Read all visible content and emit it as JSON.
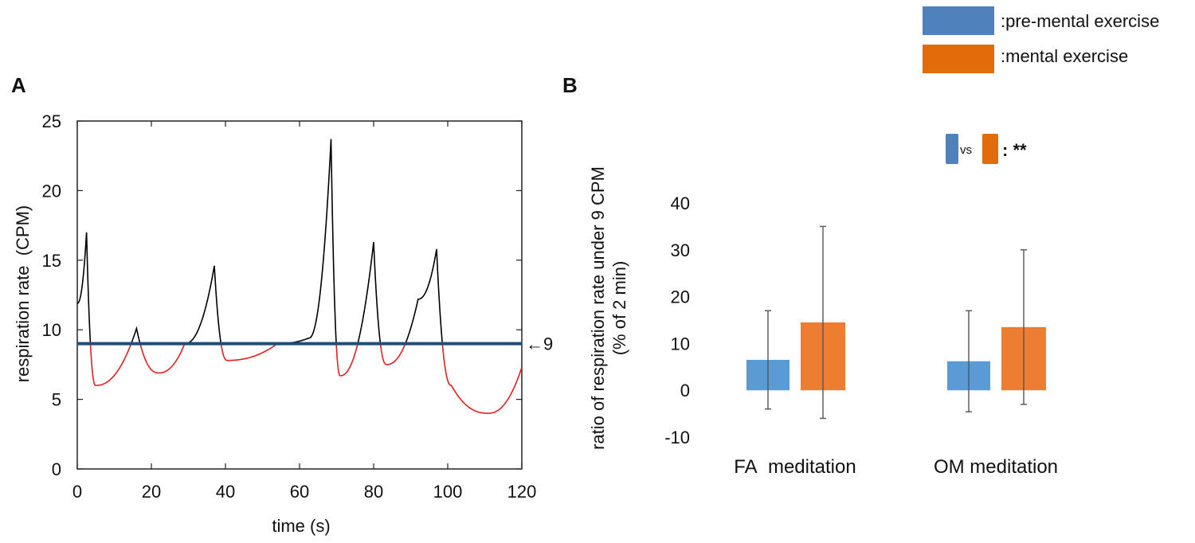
{
  "colors": {
    "pre": "#4f81bd",
    "mental": "#e36c0a",
    "bar_pre": "#5b9bd5",
    "bar_mental": "#ed7d31",
    "threshold_line": "#1f4e79",
    "above": "#000000",
    "below": "#e02020",
    "error_bar": "#555555"
  },
  "legend": {
    "pre_label": ":pre-mental exercise",
    "mental_label": ":mental exercise"
  },
  "chart_data": [
    {
      "type": "line",
      "panel": "A",
      "xlabel": "time (s)",
      "ylabel": "respiration rate  (CPM)",
      "xlim": [
        0,
        120
      ],
      "ylim": [
        0,
        25
      ],
      "xticks": [
        0,
        20,
        40,
        60,
        80,
        100,
        120
      ],
      "yticks": [
        0,
        5,
        10,
        15,
        20,
        25
      ],
      "threshold": {
        "value": 9,
        "label": "←9"
      },
      "series": [
        {
          "name": "respiration rate",
          "x": [
            0,
            2.5,
            5,
            16,
            22,
            29,
            37,
            40.5,
            54,
            62.5,
            68.5,
            71,
            80,
            83.5,
            92,
            97,
            101,
            111,
            120
          ],
          "y": [
            11.9,
            17,
            6,
            10.1,
            6.9,
            9,
            14.6,
            7.8,
            9,
            9.4,
            23.7,
            6.7,
            16.3,
            7.5,
            12.2,
            15.8,
            6,
            4,
            7.3
          ]
        }
      ]
    },
    {
      "type": "bar",
      "panel": "B",
      "categories": [
        "FA  meditation",
        "OM meditation"
      ],
      "ylabel_line1": "ratio of respiration rate under 9 CPM",
      "ylabel_line2": "(% of 2 min)",
      "ylim": [
        -10,
        40
      ],
      "yticks": [
        -10,
        0,
        10,
        20,
        30,
        40
      ],
      "series": [
        {
          "name": "pre-mental exercise",
          "values": [
            6.5,
            6.2
          ],
          "errors": [
            10.5,
            10.8
          ]
        },
        {
          "name": "mental exercise",
          "values": [
            14.5,
            13.5
          ],
          "errors": [
            20.5,
            16.5
          ]
        }
      ],
      "significance": {
        "vs_label": "vs",
        "stars": ": **"
      }
    }
  ]
}
